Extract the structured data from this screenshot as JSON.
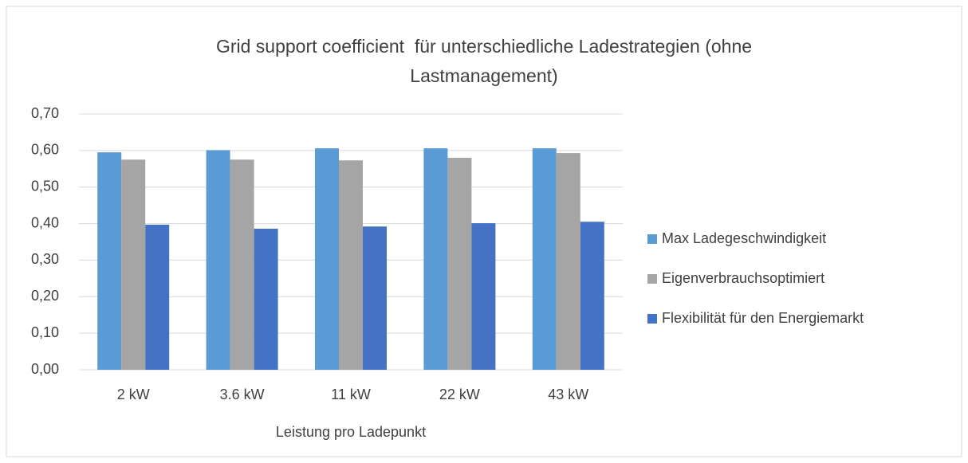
{
  "chart_data": {
    "type": "bar",
    "title": "Grid support coefficient  für unterschiedliche Ladestrategien (ohne Lastmanagement)",
    "x_label": "Leistung pro Ladepunkt",
    "categories": [
      "2 kW",
      "3.6 kW",
      "11 kW",
      "22 kW",
      "43 kW"
    ],
    "series": [
      {
        "name": "Max Ladegeschwindigkeit",
        "color": "#5b9bd5",
        "values": [
          0.595,
          0.601,
          0.606,
          0.606,
          0.606
        ]
      },
      {
        "name": "Eigenverbrauchsoptimiert",
        "color": "#a5a5a5",
        "values": [
          0.575,
          0.575,
          0.573,
          0.58,
          0.593
        ]
      },
      {
        "name": "Flexibilität für den Energiemarkt",
        "color": "#4472c4",
        "values": [
          0.397,
          0.386,
          0.392,
          0.401,
          0.405
        ]
      }
    ],
    "ylim": [
      0,
      0.7
    ],
    "yticks": [
      {
        "value": 0,
        "label": "0,00"
      },
      {
        "value": 0.1,
        "label": "0,10"
      },
      {
        "value": 0.2,
        "label": "0,20"
      },
      {
        "value": 0.3,
        "label": "0,30"
      },
      {
        "value": 0.4,
        "label": "0,40"
      },
      {
        "value": 0.5,
        "label": "0,50"
      },
      {
        "value": 0.6,
        "label": "0,60"
      },
      {
        "value": 0.7,
        "label": "0,70"
      }
    ],
    "grid": true,
    "legend": "right"
  }
}
